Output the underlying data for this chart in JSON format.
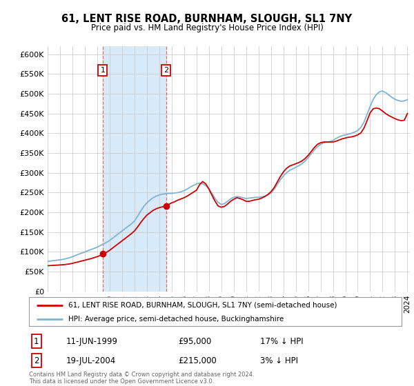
{
  "title": "61, LENT RISE ROAD, BURNHAM, SLOUGH, SL1 7NY",
  "subtitle": "Price paid vs. HM Land Registry's House Price Index (HPI)",
  "legend_line1": "61, LENT RISE ROAD, BURNHAM, SLOUGH, SL1 7NY (semi-detached house)",
  "legend_line2": "HPI: Average price, semi-detached house, Buckinghamshire",
  "footer": "Contains HM Land Registry data © Crown copyright and database right 2024.\nThis data is licensed under the Open Government Licence v3.0.",
  "sale1_date": "11-JUN-1999",
  "sale1_price": "£95,000",
  "sale1_hpi": "17% ↓ HPI",
  "sale2_date": "19-JUL-2004",
  "sale2_price": "£215,000",
  "sale2_hpi": "3% ↓ HPI",
  "sale1_x": 1999.44,
  "sale1_y": 95000,
  "sale2_x": 2004.55,
  "sale2_y": 215000,
  "line_color_red": "#cc0000",
  "line_color_blue": "#7fb3d3",
  "shade_color": "#d8eaf7",
  "background_color": "#ffffff",
  "grid_color": "#cccccc",
  "ylim": [
    0,
    620000
  ],
  "yticks": [
    0,
    50000,
    100000,
    150000,
    200000,
    250000,
    300000,
    350000,
    400000,
    450000,
    500000,
    550000,
    600000
  ],
  "ytick_labels": [
    "£0",
    "£50K",
    "£100K",
    "£150K",
    "£200K",
    "£250K",
    "£300K",
    "£350K",
    "£400K",
    "£450K",
    "£500K",
    "£550K",
    "£600K"
  ],
  "xtick_years": [
    1995,
    1996,
    1997,
    1998,
    1999,
    2000,
    2001,
    2002,
    2003,
    2004,
    2005,
    2006,
    2007,
    2008,
    2009,
    2010,
    2011,
    2012,
    2013,
    2014,
    2015,
    2016,
    2017,
    2018,
    2019,
    2020,
    2021,
    2022,
    2023,
    2024
  ],
  "hpi_x": [
    1995.0,
    1995.25,
    1995.5,
    1995.75,
    1996.0,
    1996.25,
    1996.5,
    1996.75,
    1997.0,
    1997.25,
    1997.5,
    1997.75,
    1998.0,
    1998.25,
    1998.5,
    1998.75,
    1999.0,
    1999.25,
    1999.5,
    1999.75,
    2000.0,
    2000.25,
    2000.5,
    2000.75,
    2001.0,
    2001.25,
    2001.5,
    2001.75,
    2002.0,
    2002.25,
    2002.5,
    2002.75,
    2003.0,
    2003.25,
    2003.5,
    2003.75,
    2004.0,
    2004.25,
    2004.5,
    2004.75,
    2005.0,
    2005.25,
    2005.5,
    2005.75,
    2006.0,
    2006.25,
    2006.5,
    2006.75,
    2007.0,
    2007.25,
    2007.5,
    2007.75,
    2008.0,
    2008.25,
    2008.5,
    2008.75,
    2009.0,
    2009.25,
    2009.5,
    2009.75,
    2010.0,
    2010.25,
    2010.5,
    2010.75,
    2011.0,
    2011.25,
    2011.5,
    2011.75,
    2012.0,
    2012.25,
    2012.5,
    2012.75,
    2013.0,
    2013.25,
    2013.5,
    2013.75,
    2014.0,
    2014.25,
    2014.5,
    2014.75,
    2015.0,
    2015.25,
    2015.5,
    2015.75,
    2016.0,
    2016.25,
    2016.5,
    2016.75,
    2017.0,
    2017.25,
    2017.5,
    2017.75,
    2018.0,
    2018.25,
    2018.5,
    2018.75,
    2019.0,
    2019.25,
    2019.5,
    2019.75,
    2020.0,
    2020.25,
    2020.5,
    2020.75,
    2021.0,
    2021.25,
    2021.5,
    2021.75,
    2022.0,
    2022.25,
    2022.5,
    2022.75,
    2023.0,
    2023.25,
    2023.5,
    2023.75,
    2024.0
  ],
  "hpi_y": [
    76000,
    77000,
    78000,
    79000,
    80000,
    81000,
    83000,
    85000,
    88000,
    91000,
    94000,
    97000,
    100000,
    103000,
    106000,
    109000,
    112000,
    116000,
    120000,
    124000,
    129000,
    135000,
    141000,
    147000,
    153000,
    159000,
    165000,
    171000,
    178000,
    190000,
    203000,
    215000,
    224000,
    231000,
    237000,
    241000,
    244000,
    246000,
    247000,
    248000,
    248000,
    249000,
    250000,
    252000,
    255000,
    259000,
    264000,
    268000,
    272000,
    274000,
    272000,
    268000,
    260000,
    248000,
    235000,
    225000,
    220000,
    222000,
    228000,
    234000,
    238000,
    240000,
    239000,
    237000,
    235000,
    236000,
    237000,
    238000,
    238000,
    239000,
    241000,
    244000,
    249000,
    258000,
    270000,
    282000,
    292000,
    300000,
    306000,
    310000,
    314000,
    318000,
    323000,
    330000,
    338000,
    348000,
    358000,
    366000,
    372000,
    376000,
    378000,
    379000,
    382000,
    387000,
    391000,
    394000,
    396000,
    398000,
    400000,
    403000,
    407000,
    415000,
    428000,
    448000,
    468000,
    486000,
    498000,
    505000,
    507000,
    503000,
    497000,
    491000,
    486000,
    483000,
    481000,
    482000,
    485000
  ],
  "price_x": [
    1995.0,
    1995.25,
    1995.5,
    1995.75,
    1996.0,
    1996.25,
    1996.5,
    1996.75,
    1997.0,
    1997.25,
    1997.5,
    1997.75,
    1998.0,
    1998.25,
    1998.5,
    1998.75,
    1999.0,
    1999.25,
    1999.44,
    1999.75,
    2000.0,
    2000.25,
    2000.5,
    2000.75,
    2001.0,
    2001.25,
    2001.5,
    2001.75,
    2002.0,
    2002.25,
    2002.5,
    2002.75,
    2003.0,
    2003.25,
    2003.5,
    2003.75,
    2004.0,
    2004.25,
    2004.55,
    2004.75,
    2005.0,
    2005.25,
    2005.5,
    2005.75,
    2006.0,
    2006.25,
    2006.5,
    2006.75,
    2007.0,
    2007.25,
    2007.5,
    2007.75,
    2008.0,
    2008.25,
    2008.5,
    2008.75,
    2009.0,
    2009.25,
    2009.5,
    2009.75,
    2010.0,
    2010.25,
    2010.5,
    2010.75,
    2011.0,
    2011.25,
    2011.5,
    2011.75,
    2012.0,
    2012.25,
    2012.5,
    2012.75,
    2013.0,
    2013.25,
    2013.5,
    2013.75,
    2014.0,
    2014.25,
    2014.5,
    2014.75,
    2015.0,
    2015.25,
    2015.5,
    2015.75,
    2016.0,
    2016.25,
    2016.5,
    2016.75,
    2017.0,
    2017.25,
    2017.5,
    2017.75,
    2018.0,
    2018.25,
    2018.5,
    2018.75,
    2019.0,
    2019.25,
    2019.5,
    2019.75,
    2020.0,
    2020.25,
    2020.5,
    2020.75,
    2021.0,
    2021.25,
    2021.5,
    2021.75,
    2022.0,
    2022.25,
    2022.5,
    2022.75,
    2023.0,
    2023.25,
    2023.5,
    2023.75,
    2024.0
  ],
  "price_y": [
    65000,
    65500,
    66000,
    66500,
    67000,
    67500,
    68500,
    69500,
    71000,
    73000,
    75000,
    77000,
    79000,
    81000,
    83000,
    85500,
    88000,
    91000,
    95000,
    99000,
    104000,
    110000,
    116000,
    122000,
    128000,
    134000,
    140000,
    146000,
    153000,
    163000,
    174000,
    184000,
    193000,
    199000,
    205000,
    209000,
    212000,
    214000,
    215000,
    220000,
    224000,
    227000,
    231000,
    234000,
    237000,
    241000,
    246000,
    251000,
    256000,
    270000,
    278000,
    272000,
    259000,
    243000,
    228000,
    216000,
    213000,
    215000,
    221000,
    228000,
    233000,
    237000,
    235000,
    232000,
    228000,
    228000,
    230000,
    232000,
    233000,
    236000,
    240000,
    245000,
    252000,
    262000,
    276000,
    290000,
    302000,
    311000,
    317000,
    320000,
    323000,
    326000,
    330000,
    336000,
    344000,
    354000,
    364000,
    372000,
    376000,
    378000,
    378000,
    378000,
    378000,
    380000,
    383000,
    386000,
    388000,
    390000,
    391000,
    393000,
    396000,
    401000,
    413000,
    432000,
    452000,
    462000,
    464000,
    462000,
    456000,
    450000,
    445000,
    441000,
    437000,
    434000,
    432000,
    433000,
    450000
  ]
}
